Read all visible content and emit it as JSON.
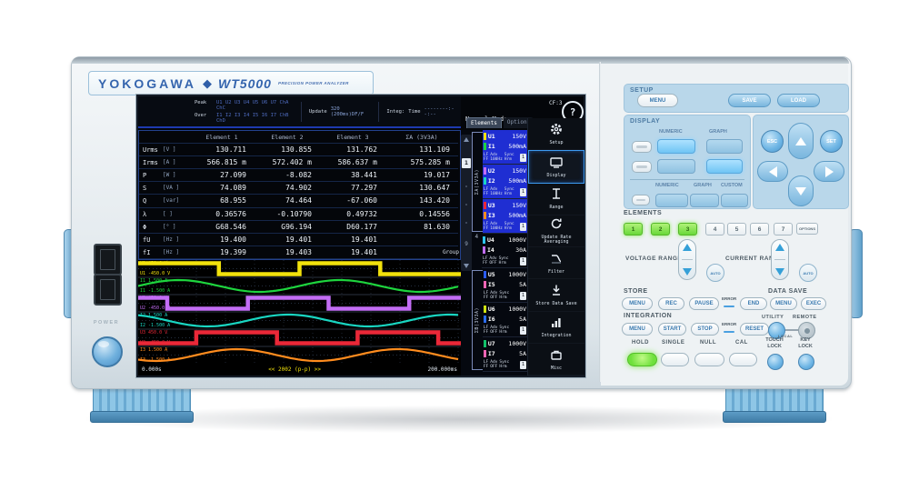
{
  "brand": {
    "name": "YOKOGAWA",
    "diamond": "◆",
    "model": "WT5000",
    "subtitle": "PRECISION POWER ANALYZER"
  },
  "left": {
    "power_label": "POWER"
  },
  "screen": {
    "status": {
      "peak_label": "Peak",
      "peak_values": "U1 U2 U3 U4 U5 U6 U7 ChA ChC",
      "over_label": "Over",
      "over_values": "I1 I2 I3 I4 I5 I6 I7 ChB ChD",
      "update_label": "Update",
      "update_value": "320 (200ms)DF/F",
      "integ_label": "Integ:",
      "time_label": "Time",
      "time_value": "--------:--:--",
      "mode": "Normal Mode",
      "cf": "CF:3",
      "help": "?"
    },
    "tabs": {
      "elements": "Elements",
      "options": "Options"
    },
    "scroll": {
      "current": "1",
      "last": "9"
    },
    "table": {
      "columns": [
        "Element 1",
        "Element 2",
        "Element 3",
        "ΣA (3V3A)"
      ],
      "rows": [
        {
          "name": "Urms",
          "unit": "[V  ]",
          "values": [
            "130.711",
            "130.855",
            "131.762",
            "131.109"
          ]
        },
        {
          "name": "Irms",
          "unit": "[A  ]",
          "values": [
            "566.815 m",
            "572.402 m",
            "586.637 m",
            "575.285 m"
          ]
        },
        {
          "name": "P",
          "unit": "[W  ]",
          "values": [
            "27.099",
            "-8.082",
            "38.441",
            "19.017"
          ]
        },
        {
          "name": "S",
          "unit": "[VA ]",
          "values": [
            "74.089",
            "74.902",
            "77.297",
            "130.647"
          ]
        },
        {
          "name": "Q",
          "unit": "[var]",
          "values": [
            "68.955",
            "74.464",
            "-67.060",
            "143.420"
          ]
        },
        {
          "name": "λ",
          "unit": "[   ]",
          "values": [
            "0.36576",
            "-0.10790",
            "0.49732",
            "0.14556"
          ]
        },
        {
          "name": "Φ",
          "unit": "[°  ]",
          "values": [
            "G68.546",
            "G96.194",
            "D60.177",
            "81.630"
          ]
        },
        {
          "name": "fU",
          "unit": "[Hz ]",
          "values": [
            "19.400",
            "19.401",
            "19.401",
            ""
          ]
        },
        {
          "name": "fI",
          "unit": "[Hz ]",
          "values": [
            "19.399",
            "19.403",
            "19.401",
            ""
          ]
        }
      ]
    },
    "waveform": {
      "time_start": "0.000s",
      "time_end": "200.000ms",
      "annotation": "<< 2002 (p-p) >>",
      "group_label": "Group",
      "traces": [
        {
          "ch": "U1",
          "type": "square",
          "color": "#f2e20c",
          "max": "450.0 V",
          "min": "-450.0 V",
          "phase": 0
        },
        {
          "ch": "I1",
          "type": "sine",
          "color": "#1ed43e",
          "max": "1.500 A",
          "min": "-1.500 A",
          "phase": 0
        },
        {
          "ch": "U2",
          "type": "square",
          "color": "#c36df5",
          "max": "450.0 V",
          "min": "-450.0 V",
          "phase": 0.68
        },
        {
          "ch": "I2",
          "type": "sine",
          "color": "#19d6c2",
          "max": "1.500 A",
          "min": "-1.500 A",
          "phase": 0.68
        },
        {
          "ch": "U3",
          "type": "square",
          "color": "#ea2838",
          "max": "450.0 V",
          "min": "-450.0 V",
          "phase": 0.36
        },
        {
          "ch": "I3",
          "type": "sine",
          "color": "#ff8c1e",
          "max": "1.500 A",
          "min": "-1.500 A",
          "phase": 0.36
        }
      ]
    },
    "sidebar": {
      "meta": {
        "lf": "LF",
        "ff": "FF",
        "adv": "Adv",
        "sync": "Sync",
        "hrm": "Hrm",
        "badge": "1"
      },
      "groups": [
        {
          "label": "ΣA(3V3A)",
          "bracket": true,
          "pairs": [
            {
              "u_ch": "U1",
              "u_range": "150V",
              "u_color": "#f2e20c",
              "i_ch": "I1",
              "i_range": "500mA",
              "i_color": "#1ed43e",
              "adv": "100Hz",
              "highlight": true
            },
            {
              "u_ch": "U2",
              "u_range": "150V",
              "u_color": "#c36df5",
              "i_ch": "I2",
              "i_range": "500mA",
              "i_color": "#19d6c2",
              "adv": "100Hz",
              "highlight": true
            },
            {
              "u_ch": "U3",
              "u_range": "150V",
              "u_color": "#ea2838",
              "i_ch": "I3",
              "i_range": "500mA",
              "i_color": "#ff8c1e",
              "adv": "100Hz",
              "highlight": true
            }
          ]
        },
        {
          "label": "4",
          "bracket": false,
          "pairs": [
            {
              "u_ch": "U4",
              "u_range": "1000V",
              "u_color": "#2ec5ef",
              "i_ch": "I4",
              "i_range": "30A",
              "i_color": "#c06cf2",
              "adv": "OFF",
              "highlight": false
            }
          ]
        },
        {
          "label": "ΣB(3V3A)",
          "bracket": true,
          "pairs": [
            {
              "u_ch": "U5",
              "u_range": "1000V",
              "u_color": "#2b5cf0",
              "i_ch": "I5",
              "i_range": "5A",
              "i_color": "#f565b5",
              "adv": "OFF",
              "highlight": false
            },
            {
              "u_ch": "U6",
              "u_range": "1000V",
              "u_color": "#cfe212",
              "i_ch": "I6",
              "i_range": "5A",
              "i_color": "#2b6cf0",
              "adv": "OFF",
              "highlight": false
            },
            {
              "u_ch": "U7",
              "u_range": "1000V",
              "u_color": "#11c26a",
              "i_ch": "I7",
              "i_range": "5A",
              "i_color": "#f565b5",
              "adv": "OFF",
              "highlight": false
            }
          ]
        }
      ]
    },
    "menu": {
      "items": [
        {
          "label": "Setup",
          "icon": "gear",
          "selected": false
        },
        {
          "label": "Display",
          "icon": "display",
          "selected": true
        },
        {
          "label": "Range",
          "icon": "range",
          "selected": false
        },
        {
          "label": "Update Rate Averaging",
          "icon": "averaging",
          "selected": false
        },
        {
          "label": "Filter",
          "icon": "filter",
          "selected": false
        },
        {
          "label": "Store Data Save",
          "icon": "store",
          "selected": false
        },
        {
          "label": "Integration",
          "icon": "integration",
          "selected": false
        },
        {
          "label": "Misc",
          "icon": "misc",
          "selected": false
        }
      ]
    }
  },
  "panel": {
    "setup": {
      "label": "SETUP",
      "menu": "MENU",
      "save": "SAVE",
      "load": "LOAD"
    },
    "display": {
      "label": "DISPLAY",
      "numeric": "NUMERIC",
      "graph": "GRAPH",
      "custom": "CUSTOM"
    },
    "nav": {
      "esc": "ESC",
      "set": "SET"
    },
    "elements": {
      "label": "ELEMENTS",
      "keys": [
        "1",
        "2",
        "3",
        "4",
        "5",
        "6",
        "7"
      ],
      "lit_count": 3,
      "options": "OPTIONS"
    },
    "voltage_range": {
      "label": "VOLTAGE RANGE",
      "auto": "AUTO"
    },
    "current_range": {
      "label": "CURRENT RANGE",
      "auto": "AUTO"
    },
    "store": {
      "label": "STORE",
      "menu": "MENU",
      "rec": "REC",
      "pause": "PAUSE",
      "error": "ERROR",
      "end": "END"
    },
    "data_save": {
      "label": "DATA SAVE",
      "menu": "MENU",
      "exec": "EXEC"
    },
    "integration": {
      "label": "INTEGRATION",
      "menu": "MENU",
      "start": "START",
      "stop": "STOP",
      "error": "ERROR",
      "reset": "RESET"
    },
    "utility": {
      "label": "UTILITY",
      "remote_label": "REMOTE",
      "local": "LOCAL"
    },
    "bottom": {
      "hold": "HOLD",
      "single": "SINGLE",
      "null": "NULL",
      "cal": "CAL",
      "touch_lock_1": "TOUCH",
      "touch_lock_2": "LOCK",
      "key_lock_1": "KEY",
      "key_lock_2": "LOCK"
    }
  }
}
